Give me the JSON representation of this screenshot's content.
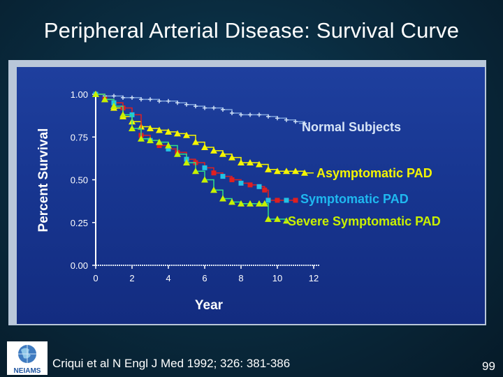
{
  "slide": {
    "title": "Peripheral Arterial Disease: Survival Curve",
    "citation": "Criqui et al  N Engl J Med 1992; 326: 381-386",
    "page_number": "99",
    "logo_text": "NEIAMS"
  },
  "chart_data": {
    "type": "line",
    "title": "",
    "xlabel": "Year",
    "ylabel": "Percent Survival",
    "xlim": [
      0,
      12
    ],
    "ylim": [
      0,
      1
    ],
    "x_ticks": [
      "0",
      "2",
      "4",
      "6",
      "8",
      "10",
      "12"
    ],
    "y_ticks": [
      "0.00",
      "0.25",
      "0.50",
      "0.75",
      "1.00"
    ],
    "grid": false,
    "colors": {
      "panel": "#17358f",
      "axis": "#ffffff",
      "normal": "#7fa3dc",
      "asymptomatic": "#f5f500",
      "symptomatic": "#e02020",
      "symptomatic_marker": "#22c3e6",
      "severe": "#2ee08a",
      "severe_marker": "#c8f000",
      "label_normal": "#d6e4f7",
      "label_asymptomatic": "#f5f500",
      "label_symptomatic": "#1fb8f0",
      "label_severe": "#c8f000"
    },
    "series": [
      {
        "name": "Normal Subjects",
        "color_key": "normal",
        "marker": "plus",
        "x": [
          0,
          0.5,
          1,
          1.5,
          2,
          2.5,
          3,
          3.5,
          4,
          4.5,
          5,
          5.5,
          6,
          6.5,
          7,
          7.5,
          8,
          8.5,
          9,
          9.5,
          10,
          10.5,
          11,
          11.5
        ],
        "y": [
          1.0,
          0.99,
          0.99,
          0.98,
          0.98,
          0.97,
          0.97,
          0.96,
          0.96,
          0.95,
          0.94,
          0.93,
          0.92,
          0.92,
          0.91,
          0.89,
          0.88,
          0.88,
          0.88,
          0.87,
          0.86,
          0.85,
          0.84,
          0.83
        ]
      },
      {
        "name": "Asymptomatic PAD",
        "color_key": "asymptomatic",
        "marker": "triangle",
        "x": [
          0,
          0.5,
          1,
          1.5,
          2,
          2.5,
          3,
          3.5,
          4,
          4.5,
          5,
          5.5,
          6,
          6.5,
          7,
          7.5,
          8,
          8.5,
          9,
          9.5,
          10,
          10.5,
          11,
          11.5
        ],
        "y": [
          1.0,
          0.97,
          0.92,
          0.87,
          0.84,
          0.81,
          0.8,
          0.79,
          0.78,
          0.77,
          0.76,
          0.72,
          0.69,
          0.67,
          0.65,
          0.63,
          0.6,
          0.6,
          0.59,
          0.56,
          0.55,
          0.55,
          0.55,
          0.54
        ]
      },
      {
        "name": "Symptomatic PAD",
        "color_key": "symptomatic",
        "marker": "square",
        "x": [
          0,
          0.5,
          1,
          1.5,
          2,
          2.5,
          3,
          3.5,
          4,
          4.5,
          5,
          5.5,
          6,
          6.5,
          7,
          7.5,
          8,
          8.5,
          9,
          9.3,
          9.5,
          10,
          10.5,
          11
        ],
        "y": [
          1.0,
          0.97,
          0.95,
          0.92,
          0.88,
          0.76,
          0.73,
          0.7,
          0.68,
          0.66,
          0.62,
          0.6,
          0.57,
          0.54,
          0.52,
          0.5,
          0.48,
          0.47,
          0.46,
          0.44,
          0.38,
          0.38,
          0.38,
          0.38
        ]
      },
      {
        "name": "Severe Symptomatic PAD",
        "color_key": "severe",
        "marker": "triangle",
        "x": [
          0,
          0.5,
          1,
          1.5,
          2,
          2.5,
          3,
          3.5,
          4,
          4.5,
          5,
          5.5,
          6,
          6.5,
          7,
          7.5,
          8,
          8.5,
          9,
          9.3,
          9.5,
          10,
          10.5
        ],
        "y": [
          1.0,
          0.97,
          0.93,
          0.88,
          0.8,
          0.74,
          0.73,
          0.72,
          0.7,
          0.65,
          0.6,
          0.55,
          0.5,
          0.44,
          0.39,
          0.37,
          0.36,
          0.36,
          0.36,
          0.36,
          0.27,
          0.27,
          0.26
        ]
      }
    ]
  }
}
